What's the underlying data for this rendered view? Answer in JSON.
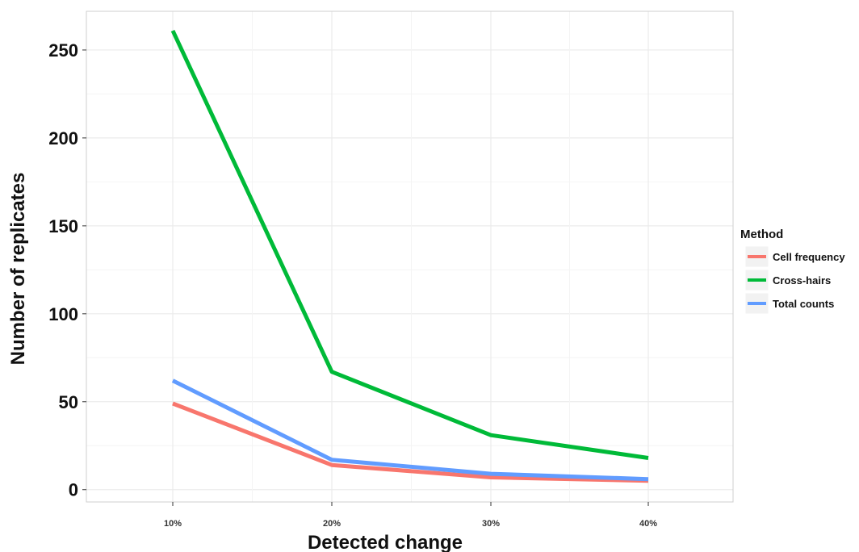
{
  "chart_data": {
    "type": "line",
    "title": "",
    "xlabel": "Detected change",
    "ylabel": "Number of replicates",
    "categories": [
      "10%",
      "20%",
      "30%",
      "40%"
    ],
    "ylim": [
      -7,
      272
    ],
    "yticks": [
      0,
      50,
      100,
      150,
      200,
      250
    ],
    "grid": true,
    "legend": {
      "title": "Method",
      "position": "right"
    },
    "series": [
      {
        "name": "Cell frequency",
        "color": "#F8766D",
        "values": [
          49,
          14,
          7,
          5
        ]
      },
      {
        "name": "Cross-hairs",
        "color": "#00BA38",
        "values": [
          261,
          67,
          31,
          18
        ]
      },
      {
        "name": "Total counts",
        "color": "#619CFF",
        "values": [
          62,
          17,
          9,
          6
        ]
      }
    ]
  }
}
